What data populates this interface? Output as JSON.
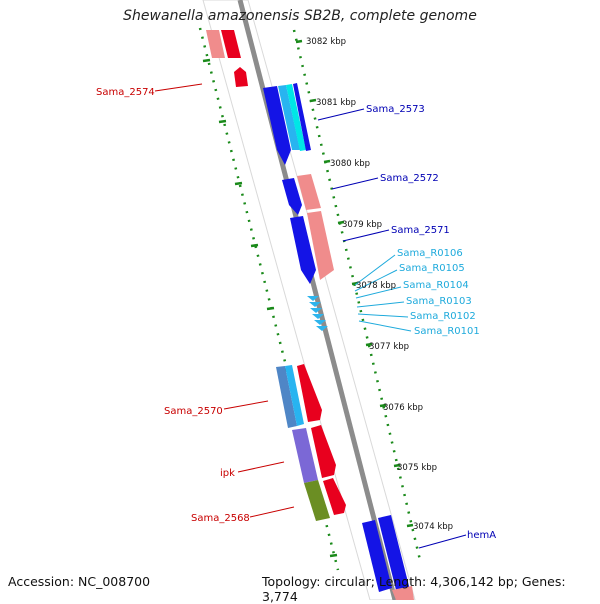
{
  "title": "Shewanella amazonensis SB2B, complete genome",
  "footer": {
    "accession": "Accession: NC_008700",
    "summary": "Topology: circular; Length: 4,306,142 bp; Genes: 3,774"
  },
  "colors": {
    "forward_label": "#c80000",
    "reverse_label": "#0000b4",
    "rna_label": "#1eaadc",
    "tick_green": "#1a8a1a",
    "backbone": "#8c8c8c"
  },
  "ticks": [
    "3082 kbp",
    "3081 kbp",
    "3080 kbp",
    "3079 kbp",
    "3078 kbp",
    "3077 kbp",
    "3076 kbp",
    "3075 kbp",
    "3074 kbp"
  ],
  "genes": [
    {
      "name": "Sama_2574",
      "strand": "forward"
    },
    {
      "name": "Sama_2573",
      "strand": "reverse"
    },
    {
      "name": "Sama_2572",
      "strand": "reverse"
    },
    {
      "name": "Sama_2571",
      "strand": "reverse"
    },
    {
      "name": "Sama_R0106",
      "strand": "rna"
    },
    {
      "name": "Sama_R0105",
      "strand": "rna"
    },
    {
      "name": "Sama_R0104",
      "strand": "rna"
    },
    {
      "name": "Sama_R0103",
      "strand": "rna"
    },
    {
      "name": "Sama_R0102",
      "strand": "rna"
    },
    {
      "name": "Sama_R0101",
      "strand": "rna"
    },
    {
      "name": "Sama_2570",
      "strand": "forward"
    },
    {
      "name": "ipk",
      "strand": "forward"
    },
    {
      "name": "Sama_2568",
      "strand": "forward"
    },
    {
      "name": "hemA",
      "strand": "reverse"
    }
  ]
}
